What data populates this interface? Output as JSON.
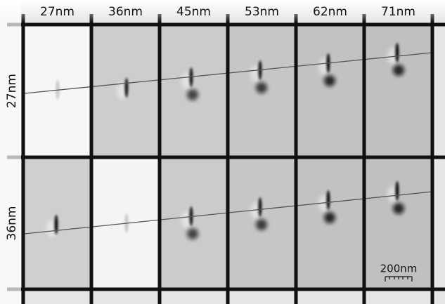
{
  "columns": [
    "27nm",
    "36nm",
    "45nm",
    "53nm",
    "62nm",
    "71nm"
  ],
  "rows": [
    "27nm",
    "36nm"
  ],
  "scale_bar": "200nm"
}
